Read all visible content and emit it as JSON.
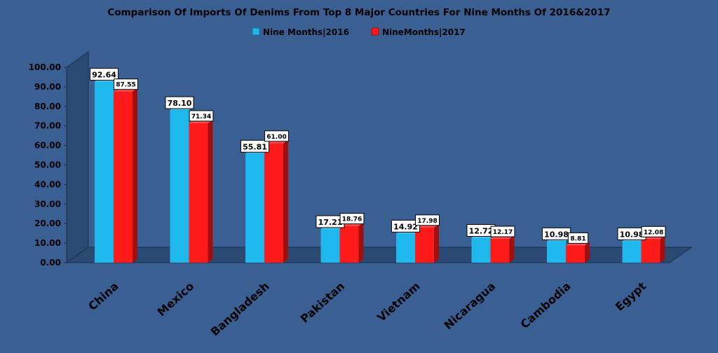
{
  "chart_data": {
    "type": "bar",
    "title": "Comparison Of Imports Of Denims From Top 8 Major Countries For Nine Months Of 2016&2017",
    "categories": [
      "China",
      "Mexico",
      "Bangladesh",
      "Pakistan",
      "Vietnam",
      "Nicaragua",
      "Cambodia",
      "Egypt"
    ],
    "series": [
      {
        "name": "Nine Months|2016",
        "color": "#1fb8ec",
        "values": [
          92.64,
          78.1,
          55.81,
          17.21,
          14.92,
          12.72,
          10.98,
          10.98
        ]
      },
      {
        "name": "NineMonths|2017",
        "color": "#ff1a1a",
        "values": [
          87.55,
          71.34,
          61.0,
          18.76,
          17.98,
          12.17,
          8.81,
          12.08
        ]
      }
    ],
    "y_ticks": [
      "0.00",
      "10.00",
      "20.00",
      "30.00",
      "40.00",
      "50.00",
      "60.00",
      "70.00",
      "80.00",
      "90.00",
      "100.00"
    ],
    "ylim": [
      0,
      100
    ],
    "legend_position": "top-center",
    "grid": false,
    "style": "3d"
  }
}
